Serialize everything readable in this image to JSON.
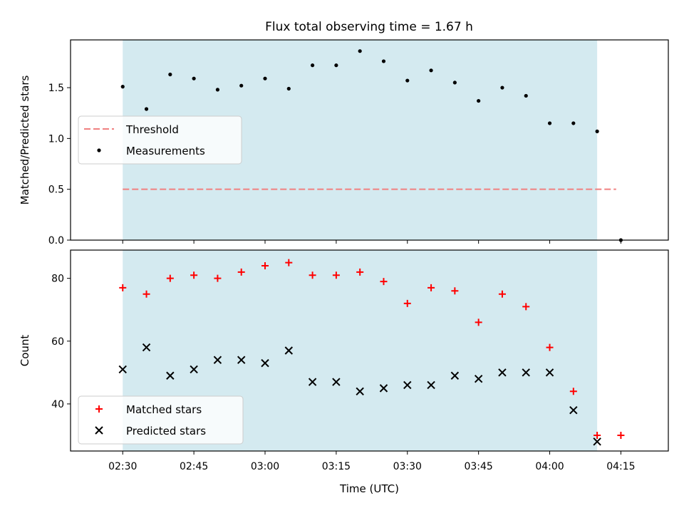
{
  "title": "Flux total observing time = 1.67 h",
  "colors": {
    "band": "#d4eaf0",
    "threshold": "#f08080",
    "measurement": "#000000",
    "matched": "#ff0000",
    "predicted": "#000000"
  },
  "chart_data": [
    {
      "type": "scatter",
      "ylabel": "Matched/Predicted stars",
      "xlim": [
        "02:19",
        "04:25"
      ],
      "ylim": [
        0,
        1.97
      ],
      "yticks": [
        0.0,
        0.5,
        1.0,
        1.5
      ],
      "ytick_labels": [
        "0.0",
        "0.5",
        "1.0",
        "1.5"
      ],
      "shaded_span": [
        "02:30",
        "04:10"
      ],
      "legend": {
        "placement": "center-left",
        "labels": [
          "Threshold",
          "Measurements"
        ]
      },
      "threshold": {
        "name": "Threshold",
        "y": 0.5,
        "x_range": [
          "02:30",
          "04:14"
        ]
      },
      "series": [
        {
          "name": "Measurements",
          "x": [
            "02:30",
            "02:35",
            "02:40",
            "02:45",
            "02:50",
            "02:55",
            "03:00",
            "03:05",
            "03:10",
            "03:15",
            "03:20",
            "03:25",
            "03:30",
            "03:35",
            "03:40",
            "03:45",
            "03:50",
            "03:55",
            "04:00",
            "04:05",
            "04:10",
            "04:15"
          ],
          "y": [
            1.51,
            1.29,
            1.63,
            1.59,
            1.48,
            1.52,
            1.59,
            1.49,
            1.72,
            1.72,
            1.86,
            1.76,
            1.57,
            1.67,
            1.55,
            1.37,
            1.5,
            1.42,
            1.15,
            1.15,
            1.07,
            0.0
          ]
        }
      ]
    },
    {
      "type": "scatter",
      "xlabel": "Time (UTC)",
      "ylabel": "Count",
      "xticks": [
        "02:30",
        "02:45",
        "03:00",
        "03:15",
        "03:30",
        "03:45",
        "04:00",
        "04:15"
      ],
      "xlim": [
        "02:19",
        "04:25"
      ],
      "ylim": [
        25,
        89
      ],
      "yticks": [
        40,
        60,
        80
      ],
      "ytick_labels": [
        "40",
        "60",
        "80"
      ],
      "shaded_span": [
        "02:30",
        "04:10"
      ],
      "legend": {
        "placement": "lower-left",
        "labels": [
          "Matched stars",
          "Predicted stars"
        ]
      },
      "series": [
        {
          "name": "Matched stars",
          "x": [
            "02:30",
            "02:35",
            "02:40",
            "02:45",
            "02:50",
            "02:55",
            "03:00",
            "03:05",
            "03:10",
            "03:15",
            "03:20",
            "03:25",
            "03:30",
            "03:35",
            "03:40",
            "03:45",
            "03:50",
            "03:55",
            "04:00",
            "04:05",
            "04:10",
            "04:15"
          ],
          "y": [
            77,
            75,
            80,
            81,
            80,
            82,
            84,
            85,
            81,
            81,
            82,
            79,
            72,
            77,
            76,
            66,
            75,
            71,
            58,
            44,
            30,
            30
          ]
        },
        {
          "name": "Predicted stars",
          "x": [
            "02:30",
            "02:35",
            "02:40",
            "02:45",
            "02:50",
            "02:55",
            "03:00",
            "03:05",
            "03:10",
            "03:15",
            "03:20",
            "03:25",
            "03:30",
            "03:35",
            "03:40",
            "03:45",
            "03:50",
            "03:55",
            "04:00",
            "04:05",
            "04:10"
          ],
          "y": [
            51,
            58,
            49,
            51,
            54,
            54,
            53,
            57,
            47,
            47,
            44,
            45,
            46,
            46,
            49,
            48,
            50,
            50,
            50,
            38,
            28
          ]
        }
      ]
    }
  ]
}
